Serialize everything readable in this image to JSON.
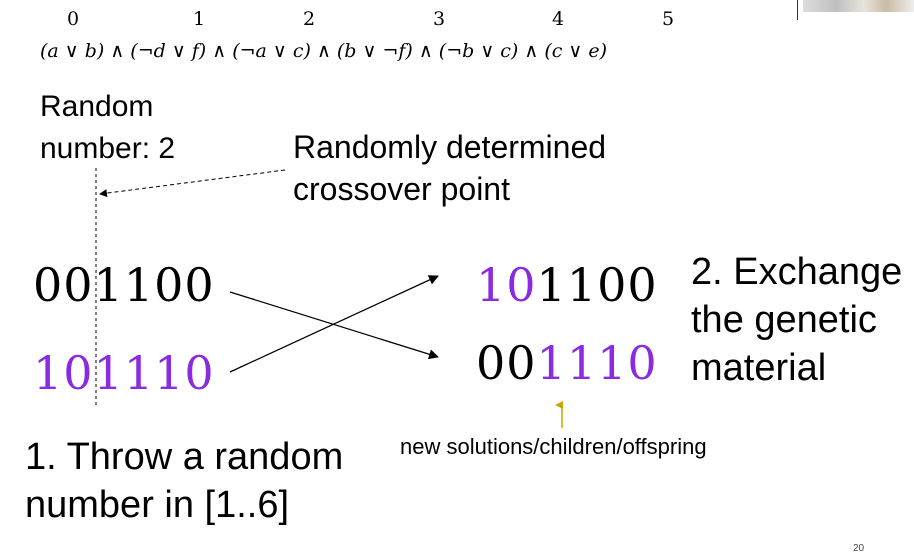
{
  "indices": [
    "0",
    "1",
    "2",
    "3",
    "4",
    "5"
  ],
  "formula": "(a ∨ b) ∧ (¬d ∨ f) ∧ (¬a ∨ c) ∧ (b ∨ ¬f) ∧ (¬b ∨ c) ∧ (c ∨ e)",
  "random_label": {
    "line1": "Random",
    "line2": "number: 2"
  },
  "crossover_label": {
    "line1": "Randomly determined",
    "line2": "crossover point"
  },
  "parents": {
    "p1": {
      "left": "00",
      "right": "1100"
    },
    "p2": {
      "left": "10",
      "right": "1110"
    }
  },
  "children": {
    "c1": {
      "left": "10",
      "right": "1100"
    },
    "c2": {
      "left": "00",
      "right": "1110"
    }
  },
  "step2": {
    "line1": "2. Exchange",
    "line2": "the genetic",
    "line3": "material"
  },
  "children_note": "new solutions/children/offspring",
  "step1": {
    "line1": "1. Throw a random",
    "line2": "number in [1..6]"
  },
  "page_number": "20",
  "colors": {
    "purple": "#8a2be2",
    "arrow_gold": "#c8a600"
  }
}
